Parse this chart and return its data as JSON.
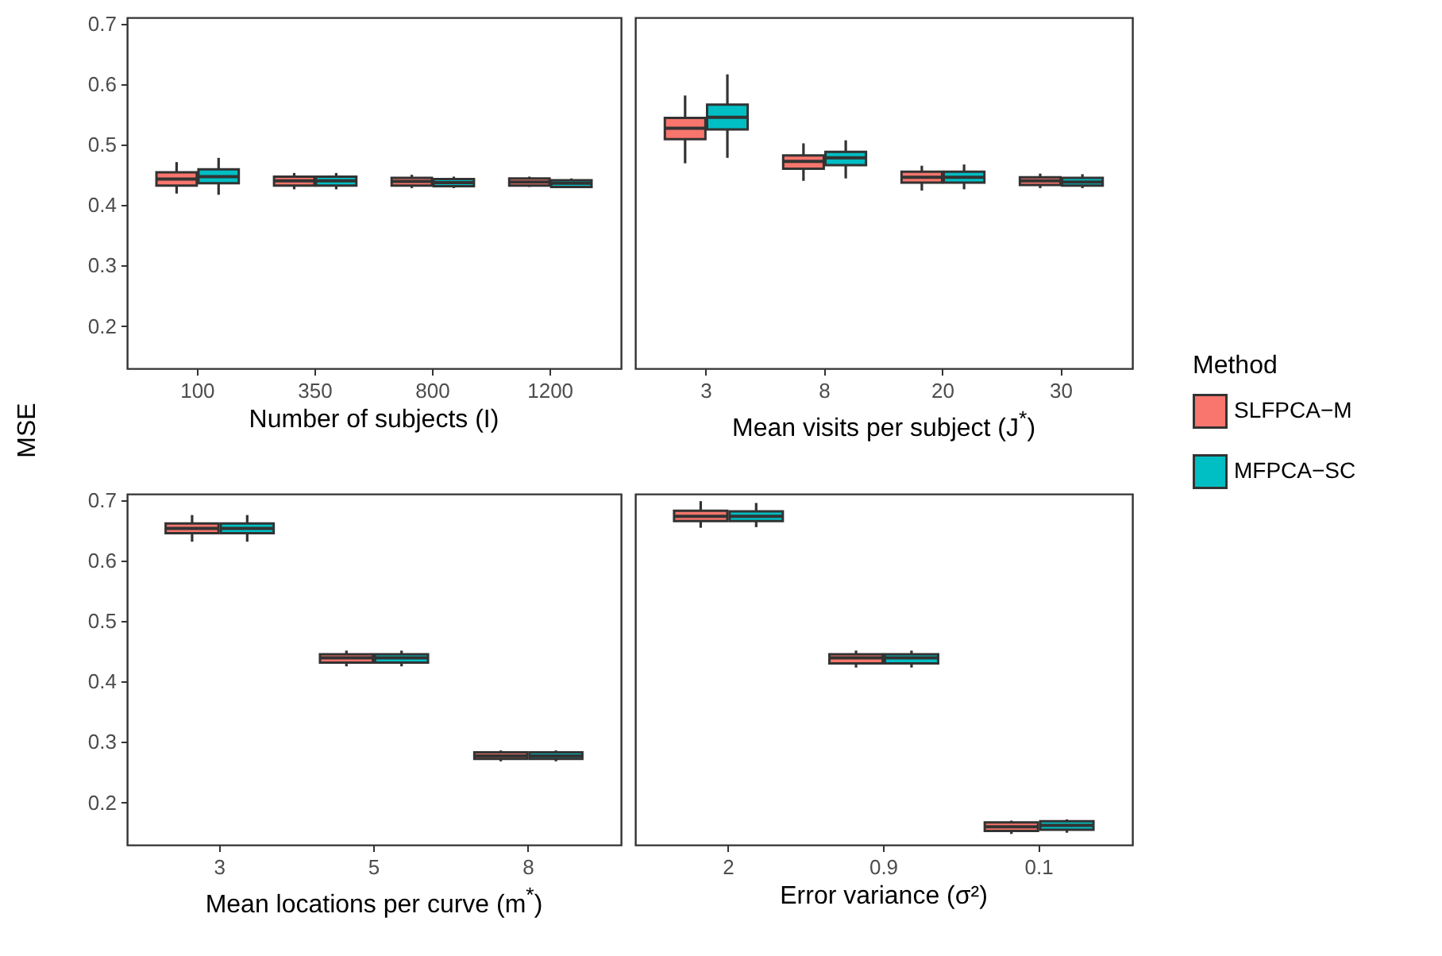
{
  "chart_data": [
    {
      "type": "box",
      "ylabel": "MSE",
      "xlabel": "Number of subjects (I)",
      "categories": [
        "100",
        "350",
        "800",
        "1200"
      ],
      "ylim": [
        0.13,
        0.71
      ],
      "yticks": [
        0.2,
        0.3,
        0.4,
        0.5,
        0.6,
        0.7
      ],
      "grid": false,
      "series": [
        {
          "color": "#f8766d",
          "boxes": [
            {
              "low": 0.419,
              "q1": 0.432,
              "median": 0.443,
              "q3": 0.454,
              "high": 0.471
            },
            {
              "low": 0.426,
              "q1": 0.432,
              "median": 0.44,
              "q3": 0.447,
              "high": 0.453
            },
            {
              "low": 0.428,
              "q1": 0.432,
              "median": 0.439,
              "q3": 0.445,
              "high": 0.45
            },
            {
              "low": 0.43,
              "q1": 0.432,
              "median": 0.438,
              "q3": 0.444,
              "high": 0.447
            }
          ]
        },
        {
          "color": "#00bfc4",
          "boxes": [
            {
              "low": 0.417,
              "q1": 0.436,
              "median": 0.447,
              "q3": 0.459,
              "high": 0.478
            },
            {
              "low": 0.426,
              "q1": 0.432,
              "median": 0.44,
              "q3": 0.447,
              "high": 0.453
            },
            {
              "low": 0.428,
              "q1": 0.431,
              "median": 0.437,
              "q3": 0.443,
              "high": 0.447
            },
            {
              "low": 0.428,
              "q1": 0.43,
              "median": 0.436,
              "q3": 0.441,
              "high": 0.444
            }
          ]
        }
      ]
    },
    {
      "type": "box",
      "xlabel": "Mean visits per subject (J$^{*}$)",
      "categories": [
        "3",
        "8",
        "20",
        "30"
      ],
      "ylim": [
        0.13,
        0.71
      ],
      "tick_labels": "x",
      "grid": false,
      "legend": "right",
      "legend_title": "Method",
      "series": [
        {
          "name": "SLFPCA−M",
          "color": "#f8766d",
          "boxes": [
            {
              "low": 0.469,
              "q1": 0.509,
              "median": 0.527,
              "q3": 0.544,
              "high": 0.581
            },
            {
              "low": 0.44,
              "q1": 0.46,
              "median": 0.472,
              "q3": 0.482,
              "high": 0.502
            },
            {
              "low": 0.424,
              "q1": 0.437,
              "median": 0.446,
              "q3": 0.455,
              "high": 0.465
            },
            {
              "low": 0.428,
              "q1": 0.433,
              "median": 0.44,
              "q3": 0.446,
              "high": 0.452
            }
          ]
        },
        {
          "name": "MFPCA−SC",
          "color": "#00bfc4",
          "boxes": [
            {
              "low": 0.478,
              "q1": 0.525,
              "median": 0.545,
              "q3": 0.566,
              "high": 0.616
            },
            {
              "low": 0.444,
              "q1": 0.466,
              "median": 0.478,
              "q3": 0.488,
              "high": 0.507
            },
            {
              "low": 0.426,
              "q1": 0.437,
              "median": 0.446,
              "q3": 0.455,
              "high": 0.467
            },
            {
              "low": 0.428,
              "q1": 0.432,
              "median": 0.438,
              "q3": 0.445,
              "high": 0.451
            }
          ]
        }
      ]
    },
    {
      "type": "box",
      "xlabel": "Mean locations per curve (m$^{*}$)",
      "categories": [
        "3",
        "5",
        "8"
      ],
      "ylim": [
        0.13,
        0.71
      ],
      "yticks": [
        0.2,
        0.3,
        0.4,
        0.5,
        0.6,
        0.7
      ],
      "grid": false,
      "series": [
        {
          "color": "#f8766d",
          "boxes": [
            {
              "low": 0.631,
              "q1": 0.645,
              "median": 0.653,
              "q3": 0.661,
              "high": 0.675
            },
            {
              "low": 0.425,
              "q1": 0.431,
              "median": 0.439,
              "q3": 0.445,
              "high": 0.451
            },
            {
              "low": 0.268,
              "q1": 0.272,
              "median": 0.277,
              "q3": 0.283,
              "high": 0.286
            }
          ]
        },
        {
          "color": "#00bfc4",
          "boxes": [
            {
              "low": 0.631,
              "q1": 0.645,
              "median": 0.653,
              "q3": 0.661,
              "high": 0.675
            },
            {
              "low": 0.425,
              "q1": 0.431,
              "median": 0.439,
              "q3": 0.445,
              "high": 0.451
            },
            {
              "low": 0.268,
              "q1": 0.272,
              "median": 0.277,
              "q3": 0.283,
              "high": 0.286
            }
          ]
        }
      ]
    },
    {
      "type": "box",
      "xlabel": "Error variance (σ²)",
      "categories": [
        "2",
        "0.9",
        "0.1"
      ],
      "ylim": [
        0.13,
        0.71
      ],
      "tick_labels": "x",
      "grid": false,
      "series": [
        {
          "color": "#f8766d",
          "boxes": [
            {
              "low": 0.654,
              "q1": 0.665,
              "median": 0.673,
              "q3": 0.682,
              "high": 0.698
            },
            {
              "low": 0.423,
              "q1": 0.43,
              "median": 0.439,
              "q3": 0.445,
              "high": 0.451
            },
            {
              "low": 0.148,
              "q1": 0.153,
              "median": 0.16,
              "q3": 0.167,
              "high": 0.17
            }
          ]
        },
        {
          "color": "#00bfc4",
          "boxes": [
            {
              "low": 0.655,
              "q1": 0.665,
              "median": 0.673,
              "q3": 0.681,
              "high": 0.695
            },
            {
              "low": 0.423,
              "q1": 0.43,
              "median": 0.439,
              "q3": 0.445,
              "high": 0.451
            },
            {
              "low": 0.15,
              "q1": 0.155,
              "median": 0.162,
              "q3": 0.169,
              "high": 0.172
            }
          ]
        }
      ]
    }
  ]
}
